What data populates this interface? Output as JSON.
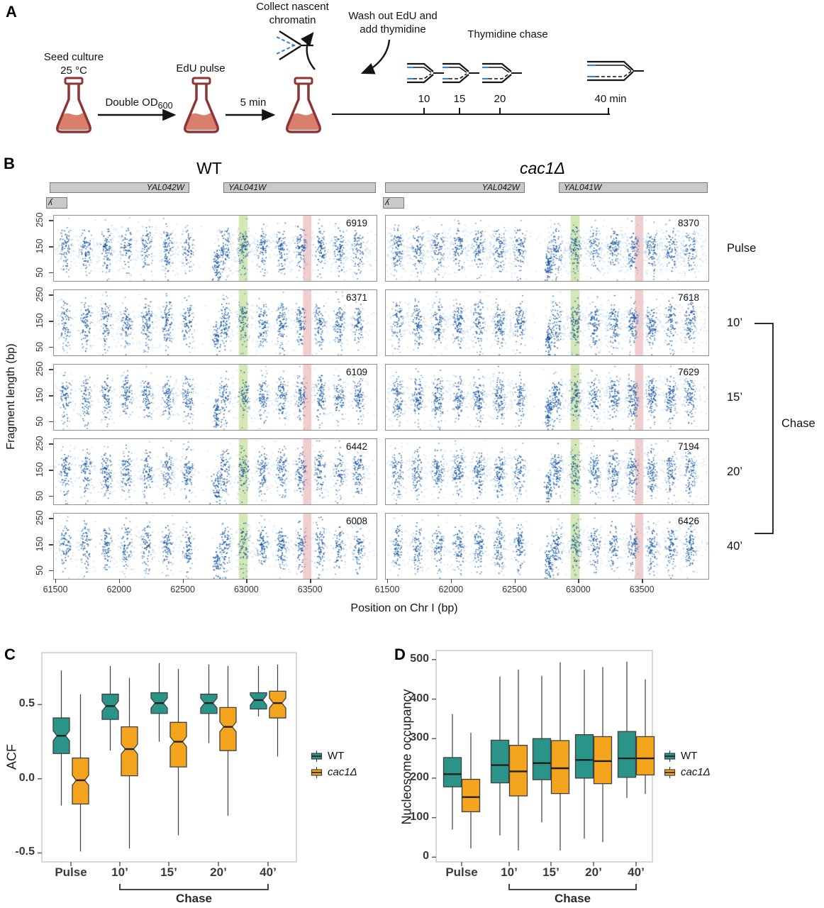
{
  "labels": {
    "a": "A",
    "b": "B",
    "c": "C",
    "d": "D"
  },
  "panel_a": {
    "seed_line1": "Seed culture",
    "seed_line2": "25 °C",
    "double_od": "Double OD",
    "double_od_sub": "600",
    "edu_pulse": "EdU pulse",
    "five_min": "5 min",
    "collect_line1": "Collect nascent",
    "collect_line2": "chromatin",
    "wash_line1": "Wash out EdU and",
    "wash_line2": "add thymidine",
    "thymidine_chase": "Thymidine chase",
    "timeline_ticks": [
      "10",
      "15",
      "20",
      "40 min"
    ]
  },
  "panel_b": {
    "titles": {
      "wt": "WT",
      "mutant": "cac1Δ"
    },
    "genes": {
      "left": "YAL042W",
      "right": "YAL041W",
      "clipped": "ʎ"
    },
    "y_axis_label": "Fragment length (bp)",
    "x_axis_label": "Position on Chr I (bp)",
    "row_labels": [
      "Pulse",
      "10’",
      "15’",
      "20’",
      "40’"
    ],
    "chase_label": "Chase",
    "counts": {
      "wt": [
        "6919",
        "6371",
        "6109",
        "6442",
        "6008"
      ],
      "mutant": [
        "8370",
        "7618",
        "7629",
        "7194",
        "6426"
      ]
    }
  },
  "chart_data": [
    {
      "type": "scatter",
      "columns": [
        "WT",
        "cac1Δ"
      ],
      "rows": [
        "Pulse",
        "10’",
        "15’",
        "20’",
        "40’"
      ],
      "x_range_bp": [
        61483,
        64017
      ],
      "y_range_bp": [
        20,
        270
      ],
      "x_ticks": [
        61500,
        62000,
        62500,
        63000,
        63500
      ],
      "x_tick_labels": [
        "61500",
        "62000",
        "62500",
        "63000",
        "63500"
      ],
      "y_ticks": [
        250,
        150,
        50
      ],
      "y_tick_labels": [
        "250",
        "150",
        "50"
      ],
      "fragment_counts": {
        "WT": [
          6919,
          6371,
          6109,
          6442,
          6008
        ],
        "cac1Δ": [
          8370,
          7618,
          7629,
          7194,
          6426
        ]
      },
      "nucleosome_cluster_centers_bp": [
        61570,
        61730,
        61890,
        62050,
        62210,
        62370,
        62530,
        62820,
        62970,
        63120,
        63270,
        63420,
        63570,
        63720,
        63870
      ],
      "subnucleosomal_cluster_bp": 62760,
      "ndr_bp_range": [
        62590,
        62745
      ],
      "highlight_bands": [
        {
          "from_bp": 62935,
          "to_bp": 63005,
          "color": "#a9cf6a"
        },
        {
          "from_bp": 63440,
          "to_bp": 63505,
          "color": "#e49c9c"
        }
      ],
      "point_colors": [
        "#10519c",
        "#2e6fb4",
        "#5d92c8",
        "#92badd",
        "#c2d9ec"
      ]
    },
    {
      "type": "box",
      "panel": "C",
      "ylabel": "ACF",
      "categories": [
        "Pulse",
        "10’",
        "15’",
        "20’",
        "40’"
      ],
      "bracket_label": "Chase",
      "y_ticks": [
        0.5,
        0.0,
        -0.5
      ],
      "y_tick_labels": [
        "0.5",
        "0.0",
        "-0.5"
      ],
      "ylim": [
        -0.56,
        0.85
      ],
      "notched": true,
      "legend_position": "right",
      "series": [
        {
          "name": "WT",
          "color": "#2a9489",
          "italic": false,
          "boxes": [
            [
              -0.18,
              0.17,
              0.29,
              0.41,
              0.73
            ],
            [
              0.19,
              0.4,
              0.49,
              0.57,
              0.76
            ],
            [
              0.25,
              0.44,
              0.51,
              0.58,
              0.78
            ],
            [
              0.24,
              0.44,
              0.51,
              0.57,
              0.77
            ],
            [
              0.42,
              0.47,
              0.53,
              0.58,
              0.76
            ]
          ]
        },
        {
          "name": "cac1Δ",
          "color": "#f5a41d",
          "italic": true,
          "boxes": [
            [
              -0.49,
              -0.17,
              -0.01,
              0.14,
              0.57
            ],
            [
              -0.47,
              0.02,
              0.2,
              0.35,
              0.68
            ],
            [
              -0.38,
              0.08,
              0.25,
              0.38,
              0.74
            ],
            [
              -0.25,
              0.19,
              0.35,
              0.48,
              0.76
            ],
            [
              0.15,
              0.41,
              0.51,
              0.59,
              0.77
            ]
          ]
        }
      ]
    },
    {
      "type": "box",
      "panel": "D",
      "ylabel": "Nucleosome occupancy",
      "categories": [
        "Pulse",
        "10’",
        "15’",
        "20’",
        "40’"
      ],
      "bracket_label": "Chase",
      "y_ticks": [
        500,
        400,
        300,
        200,
        100,
        0
      ],
      "y_tick_labels": [
        "500",
        "400",
        "300",
        "200",
        "100",
        "0"
      ],
      "ylim": [
        -12,
        523
      ],
      "notched": false,
      "legend_position": "right",
      "series": [
        {
          "name": "WT",
          "color": "#2a9489",
          "italic": false,
          "boxes": [
            [
              70,
              178,
              210,
              252,
              362
            ],
            [
              55,
              188,
              233,
              296,
              457
            ],
            [
              88,
              196,
              238,
              300,
              459
            ],
            [
              47,
              200,
              246,
              310,
              474
            ],
            [
              150,
              202,
              250,
              318,
              495
            ]
          ]
        },
        {
          "name": "cac1Δ",
          "color": "#f5a41d",
          "italic": true,
          "boxes": [
            [
              22,
              115,
              152,
              197,
              315
            ],
            [
              17,
              155,
              217,
              283,
              475
            ],
            [
              17,
              161,
              225,
              295,
              493
            ],
            [
              38,
              186,
              243,
              305,
              481
            ],
            [
              160,
              208,
              250,
              305,
              450
            ]
          ]
        }
      ]
    }
  ]
}
